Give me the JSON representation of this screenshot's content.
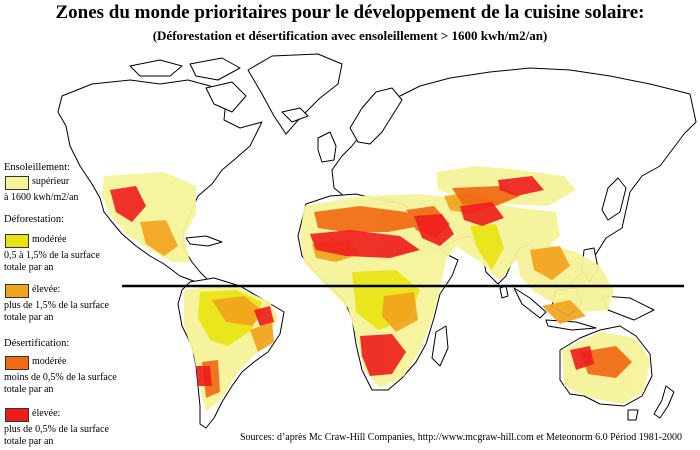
{
  "title": "Zones du monde prioritaires pour le développement de la cuisine solaire:",
  "subtitle": "(Déforestation et désertification avec ensoleillement > 1600 kwh/m2/an)",
  "legend": {
    "ensoleillement": {
      "heading": "Ensoleillement:",
      "label": "supérieur",
      "desc": "à 1600 kwh/m2/an",
      "color": "#f6f39a"
    },
    "deforestation": {
      "heading": "Déforestation:",
      "moderate": {
        "label": "modérée",
        "desc": "0,5 à 1,5% de la surface totale par an",
        "color": "#e9e410"
      },
      "high": {
        "label": "élevée:",
        "desc": "plus de 1,5% de la surface totale par an",
        "color": "#f2a31d"
      }
    },
    "desertification": {
      "heading": "Désertification:",
      "moderate": {
        "label": "modérée",
        "desc": "moins de 0,5% de la surface totale par an",
        "color": "#f06a13"
      },
      "high": {
        "label": "élevée:",
        "desc": "plus de 0,5% de la surface totale par an",
        "color": "#ef1c1c"
      }
    }
  },
  "source": "Sources: d’après Mc Craw-Hill Companies, http://www.mcgraw-hill.com et Meteonorm 6.0 Périod 1981-2000"
}
